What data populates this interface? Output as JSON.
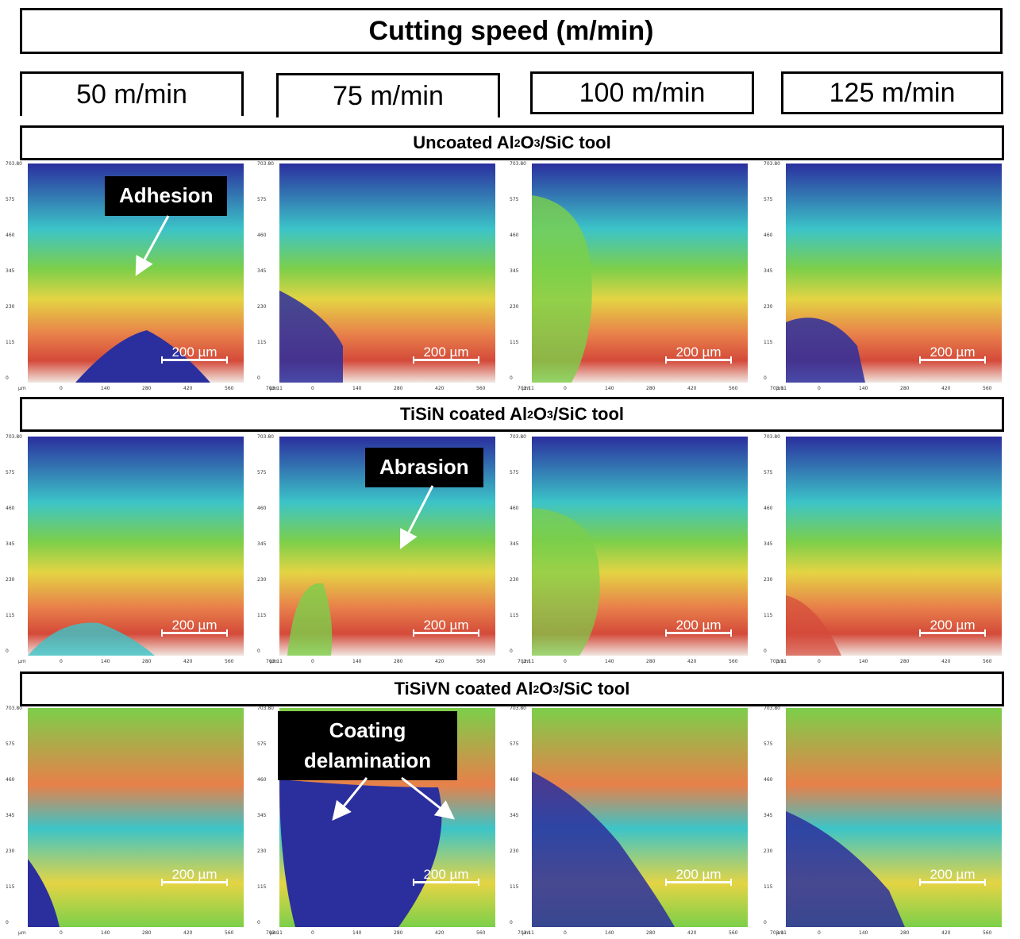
{
  "header": {
    "title": "Cutting speed (m/min)"
  },
  "speeds": [
    "50 m/min",
    "75 m/min",
    "100 m/min",
    "125 m/min"
  ],
  "rows": [
    {
      "pre": "Uncoated Al",
      "s1": "2",
      "mid": "O",
      "s2": "3",
      "post": "/SiC tool"
    },
    {
      "pre": "TiSiN coated Al",
      "s1": "2",
      "mid": "O",
      "s2": "3",
      "post": "/SiC tool"
    },
    {
      "pre": "TiSiVN coated Al",
      "s1": "2",
      "mid": "O",
      "s2": "3",
      "post": "/SiC tool"
    }
  ],
  "scale": "200 µm",
  "y_ticks": [
    "703.80",
    "575",
    "460",
    "345",
    "230",
    "115",
    "0"
  ],
  "x_ticks": [
    "µm",
    "0",
    "140",
    "280",
    "420",
    "560",
    "703.11"
  ],
  "annotations": {
    "adhesion": "Adhesion",
    "abrasion": "Abrasion",
    "delamination_1": "Coating",
    "delamination_2": "delamination"
  },
  "colors": {
    "blue": "#2b2f9e",
    "cyan": "#3cc4c8",
    "green": "#7ccf4a",
    "yellow": "#e4d444",
    "orange": "#e8804a",
    "red": "#d44a3a",
    "white": "#f0e6e0"
  }
}
